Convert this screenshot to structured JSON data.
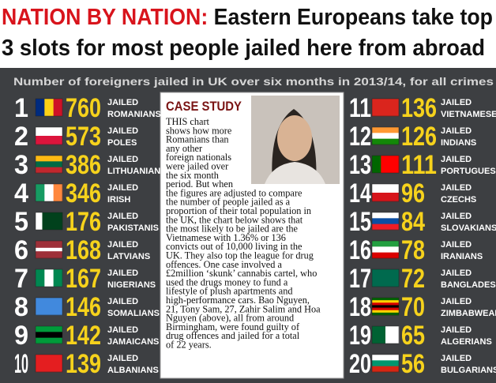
{
  "header": {
    "highlight": "NATION BY NATION:",
    "title_rest": " Eastern Europeans take top",
    "title_line2": "3 slots for most people jailed here from abroad"
  },
  "subtitle": "Number of foreigners jailed in UK over six months in 2013/14, for all crimes",
  "rows": [
    {
      "rank": 1,
      "number": 760,
      "label": "JAILED",
      "nationality": "ROMANIANS"
    },
    {
      "rank": 2,
      "number": 573,
      "label": "JAILED",
      "nationality": "POLES"
    },
    {
      "rank": 3,
      "number": 386,
      "label": "JAILED",
      "nationality": "LITHUANIANS"
    },
    {
      "rank": 4,
      "number": 346,
      "label": "JAILED",
      "nationality": "IRISH"
    },
    {
      "rank": 5,
      "number": 176,
      "label": "JAILED",
      "nationality": "PAKISTANIS"
    },
    {
      "rank": 6,
      "number": 168,
      "label": "JAILED",
      "nationality": "LATVIANS"
    },
    {
      "rank": 7,
      "number": 167,
      "label": "JAILED",
      "nationality": "NIGERIANS"
    },
    {
      "rank": 8,
      "number": 146,
      "label": "JAILED",
      "nationality": "SOMALIANS"
    },
    {
      "rank": 9,
      "number": 142,
      "label": "JAILED",
      "nationality": "JAMAICANS"
    },
    {
      "rank": 10,
      "number": 139,
      "label": "JAILED",
      "nationality": "ALBANIANS"
    },
    {
      "rank": 11,
      "number": 136,
      "label": "JAILED",
      "nationality": "VIETNAMESE"
    },
    {
      "rank": 12,
      "number": 126,
      "label": "JAILED",
      "nationality": "INDIANS"
    },
    {
      "rank": 13,
      "number": 111,
      "label": "JAILED",
      "nationality": "PORTUGUESE"
    },
    {
      "rank": 14,
      "number": 96,
      "label": "JAILED",
      "nationality": "CZECHS"
    },
    {
      "rank": 15,
      "number": 84,
      "label": "JAILED",
      "nationality": "SLOVAKIANS"
    },
    {
      "rank": 16,
      "number": 78,
      "label": "JAILED",
      "nationality": "IRANIANS"
    },
    {
      "rank": 17,
      "number": 72,
      "label": "JAILED",
      "nationality": "BANGLADESHIS"
    },
    {
      "rank": 18,
      "number": 70,
      "label": "JAILED",
      "nationality": "ZIMBABWEANS"
    },
    {
      "rank": 19,
      "number": 65,
      "label": "JAILED",
      "nationality": "ALGERIANS"
    },
    {
      "rank": 20,
      "number": 56,
      "label": "JAILED",
      "nationality": "BULGARIANS"
    }
  ],
  "case_study": {
    "title": "CASE STUDY",
    "lines": [
      "THIS chart",
      "shows how more",
      "Romanians than",
      "any other",
      "foreign nationals",
      "were jailed over",
      "the six month",
      "period. But when",
      "the figures are adjusted to compare",
      "the number of people jailed as a",
      "proportion of their total population in",
      "the UK, the chart below shows that",
      "the most likely to be jailed are the",
      "Vietnamese with 1.36%  or 136",
      "convicts out of 10,000 living in the",
      "UK. They also top the league for drug",
      "offences. One case involved a",
      "£2million ‘skunk’ cannabis cartel, who",
      "used the drugs money to fund a",
      "lifestyle of plush apartments and",
      "high-performance cars. Bao Nguyen,",
      "21, Tony Sam, 27, Zahir Salim and Hoa",
      "Nguyen (above), all from around",
      "Birmingham, were found guilty of",
      "drug offences and jailed for a total",
      "of 22 years."
    ]
  }
}
